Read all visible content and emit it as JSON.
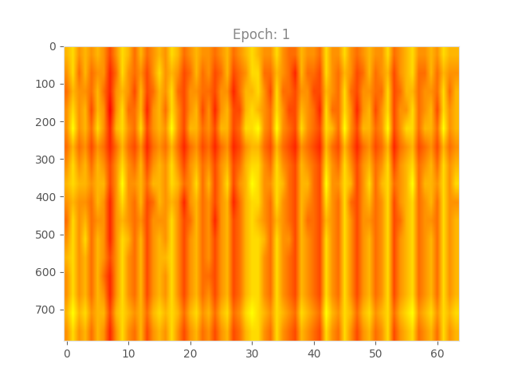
{
  "chart_data": {
    "type": "heatmap",
    "title": "Epoch: 1",
    "xlim": [
      -0.5,
      63.5
    ],
    "ylim": [
      783.5,
      -0.5
    ],
    "xticks": [
      0,
      10,
      20,
      30,
      40,
      50,
      60
    ],
    "yticks": [
      0,
      100,
      200,
      300,
      400,
      500,
      600,
      700
    ],
    "cells": [
      [
        6,
        7,
        5,
        6,
        5,
        6,
        5,
        3,
        5,
        7,
        6,
        4,
        6,
        4,
        5,
        6,
        5,
        7,
        6,
        4,
        5,
        6,
        5,
        5,
        4,
        5,
        6,
        4,
        5,
        6,
        7,
        6,
        5,
        5,
        7,
        5,
        4,
        4,
        6,
        5,
        5,
        4,
        7,
        5,
        5,
        7,
        5,
        4,
        5,
        6,
        5,
        5,
        7,
        4,
        5,
        6,
        7,
        5,
        5,
        6,
        5,
        7,
        6,
        6
      ],
      [
        5,
        7,
        4,
        6,
        4,
        5,
        5,
        2,
        4,
        7,
        5,
        4,
        5,
        3,
        5,
        7,
        5,
        6,
        5,
        3,
        4,
        6,
        4,
        5,
        3,
        4,
        6,
        3,
        4,
        5,
        7,
        7,
        4,
        4,
        6,
        5,
        4,
        2,
        6,
        4,
        4,
        3,
        7,
        5,
        4,
        6,
        5,
        3,
        4,
        6,
        4,
        5,
        6,
        3,
        5,
        6,
        7,
        4,
        4,
        6,
        4,
        6,
        5,
        5
      ],
      [
        4,
        6,
        5,
        5,
        4,
        6,
        4,
        2,
        5,
        6,
        5,
        3,
        6,
        3,
        4,
        6,
        5,
        7,
        4,
        3,
        5,
        5,
        4,
        4,
        3,
        5,
        5,
        2,
        4,
        6,
        6,
        7,
        5,
        3,
        7,
        4,
        4,
        3,
        5,
        5,
        3,
        3,
        6,
        5,
        4,
        7,
        4,
        3,
        5,
        5,
        4,
        4,
        7,
        3,
        4,
        6,
        6,
        4,
        5,
        5,
        4,
        7,
        4,
        6
      ],
      [
        5,
        7,
        5,
        6,
        3,
        6,
        5,
        1,
        5,
        7,
        4,
        4,
        6,
        2,
        5,
        6,
        4,
        7,
        5,
        3,
        5,
        6,
        3,
        5,
        2,
        5,
        6,
        3,
        3,
        6,
        7,
        6,
        5,
        4,
        7,
        5,
        3,
        3,
        6,
        5,
        4,
        2,
        7,
        4,
        4,
        7,
        5,
        2,
        5,
        6,
        3,
        5,
        7,
        3,
        5,
        5,
        7,
        4,
        5,
        6,
        3,
        7,
        5,
        6
      ],
      [
        5,
        8,
        5,
        6,
        4,
        7,
        5,
        2,
        6,
        7,
        5,
        4,
        7,
        3,
        5,
        6,
        5,
        8,
        5,
        3,
        6,
        6,
        4,
        5,
        3,
        6,
        6,
        3,
        4,
        7,
        7,
        8,
        5,
        4,
        8,
        5,
        4,
        3,
        7,
        5,
        4,
        3,
        7,
        6,
        4,
        8,
        5,
        3,
        6,
        6,
        4,
        5,
        8,
        3,
        5,
        7,
        7,
        4,
        6,
        6,
        4,
        8,
        5,
        6
      ],
      [
        4,
        6,
        4,
        5,
        3,
        5,
        4,
        2,
        4,
        6,
        4,
        3,
        5,
        2,
        4,
        5,
        4,
        6,
        4,
        2,
        4,
        5,
        3,
        4,
        2,
        4,
        5,
        2,
        3,
        5,
        6,
        6,
        4,
        3,
        6,
        4,
        3,
        2,
        5,
        4,
        3,
        2,
        6,
        4,
        3,
        6,
        4,
        2,
        4,
        5,
        3,
        4,
        6,
        2,
        4,
        5,
        6,
        3,
        4,
        5,
        3,
        6,
        4,
        5
      ],
      [
        5,
        7,
        5,
        6,
        4,
        6,
        5,
        3,
        5,
        7,
        5,
        4,
        6,
        3,
        5,
        6,
        5,
        7,
        5,
        3,
        5,
        6,
        4,
        5,
        3,
        5,
        6,
        3,
        4,
        6,
        7,
        7,
        5,
        4,
        7,
        5,
        4,
        3,
        6,
        5,
        4,
        3,
        7,
        5,
        4,
        7,
        5,
        3,
        5,
        6,
        4,
        5,
        7,
        3,
        5,
        6,
        7,
        4,
        5,
        6,
        4,
        7,
        5,
        6
      ],
      [
        6,
        7,
        6,
        6,
        5,
        6,
        6,
        3,
        5,
        8,
        5,
        5,
        6,
        4,
        6,
        6,
        5,
        7,
        6,
        4,
        5,
        7,
        4,
        6,
        3,
        5,
        7,
        3,
        5,
        6,
        8,
        7,
        5,
        5,
        7,
        6,
        4,
        3,
        6,
        6,
        4,
        3,
        8,
        5,
        5,
        7,
        6,
        3,
        5,
        7,
        4,
        6,
        7,
        4,
        5,
        6,
        8,
        4,
        6,
        6,
        5,
        7,
        5,
        7
      ],
      [
        5,
        6,
        5,
        5,
        4,
        6,
        5,
        2,
        5,
        7,
        5,
        4,
        6,
        3,
        4,
        6,
        5,
        6,
        5,
        2,
        5,
        6,
        4,
        5,
        3,
        5,
        6,
        2,
        4,
        6,
        7,
        7,
        5,
        4,
        7,
        5,
        4,
        3,
        6,
        5,
        4,
        3,
        7,
        5,
        4,
        7,
        4,
        3,
        5,
        6,
        4,
        5,
        7,
        3,
        5,
        6,
        7,
        4,
        5,
        6,
        4,
        7,
        5,
        5
      ],
      [
        4,
        7,
        5,
        6,
        4,
        5,
        5,
        2,
        5,
        6,
        5,
        4,
        5,
        3,
        5,
        5,
        5,
        7,
        5,
        3,
        4,
        6,
        4,
        5,
        2,
        5,
        6,
        3,
        4,
        6,
        7,
        6,
        5,
        4,
        6,
        5,
        4,
        3,
        6,
        4,
        4,
        3,
        6,
        5,
        4,
        7,
        5,
        3,
        5,
        5,
        4,
        5,
        7,
        3,
        4,
        6,
        7,
        4,
        5,
        5,
        4,
        7,
        5,
        6
      ],
      [
        5,
        7,
        5,
        7,
        4,
        6,
        5,
        2,
        5,
        7,
        6,
        4,
        6,
        3,
        5,
        6,
        5,
        7,
        5,
        3,
        5,
        6,
        4,
        5,
        3,
        5,
        6,
        3,
        4,
        6,
        7,
        7,
        6,
        4,
        7,
        5,
        5,
        3,
        6,
        5,
        4,
        3,
        7,
        5,
        4,
        7,
        5,
        3,
        5,
        6,
        4,
        5,
        7,
        3,
        5,
        6,
        7,
        4,
        5,
        6,
        4,
        7,
        5,
        6
      ],
      [
        6,
        7,
        5,
        6,
        4,
        6,
        5,
        3,
        5,
        7,
        5,
        4,
        6,
        3,
        5,
        6,
        6,
        7,
        5,
        3,
        5,
        6,
        4,
        5,
        3,
        5,
        6,
        3,
        4,
        6,
        7,
        7,
        5,
        4,
        7,
        5,
        4,
        3,
        6,
        5,
        4,
        3,
        7,
        5,
        4,
        7,
        5,
        3,
        5,
        6,
        4,
        5,
        7,
        3,
        5,
        6,
        7,
        4,
        5,
        6,
        4,
        7,
        5,
        6
      ],
      [
        5,
        7,
        5,
        6,
        4,
        6,
        4,
        2,
        5,
        7,
        5,
        4,
        6,
        3,
        5,
        6,
        5,
        7,
        5,
        3,
        5,
        6,
        4,
        4,
        3,
        5,
        6,
        3,
        4,
        6,
        7,
        7,
        5,
        4,
        7,
        5,
        4,
        3,
        6,
        5,
        4,
        3,
        7,
        5,
        4,
        7,
        5,
        3,
        5,
        6,
        4,
        5,
        7,
        3,
        5,
        6,
        7,
        4,
        5,
        6,
        4,
        7,
        5,
        6
      ],
      [
        5,
        7,
        5,
        6,
        4,
        6,
        5,
        2,
        5,
        7,
        5,
        4,
        6,
        3,
        5,
        6,
        5,
        7,
        5,
        3,
        5,
        6,
        4,
        5,
        3,
        5,
        6,
        3,
        4,
        6,
        7,
        7,
        5,
        4,
        7,
        5,
        4,
        3,
        6,
        5,
        4,
        3,
        7,
        5,
        4,
        7,
        5,
        3,
        5,
        6,
        4,
        5,
        7,
        3,
        5,
        6,
        7,
        4,
        5,
        6,
        4,
        7,
        5,
        6
      ],
      [
        6,
        8,
        6,
        7,
        5,
        6,
        6,
        3,
        6,
        7,
        6,
        5,
        6,
        4,
        6,
        7,
        6,
        7,
        6,
        4,
        6,
        7,
        5,
        6,
        4,
        6,
        7,
        4,
        5,
        7,
        8,
        7,
        6,
        5,
        7,
        6,
        5,
        4,
        7,
        6,
        5,
        4,
        8,
        6,
        5,
        7,
        6,
        4,
        6,
        7,
        5,
        6,
        7,
        4,
        6,
        7,
        8,
        5,
        6,
        7,
        5,
        7,
        6,
        7
      ],
      [
        5,
        7,
        5,
        6,
        4,
        6,
        5,
        2,
        5,
        7,
        5,
        4,
        6,
        3,
        5,
        6,
        5,
        7,
        5,
        3,
        5,
        6,
        4,
        5,
        3,
        5,
        6,
        3,
        4,
        6,
        7,
        7,
        5,
        4,
        7,
        5,
        4,
        3,
        6,
        5,
        4,
        3,
        7,
        5,
        4,
        7,
        5,
        3,
        5,
        6,
        4,
        5,
        7,
        3,
        5,
        6,
        7,
        4,
        5,
        6,
        4,
        7,
        5,
        6
      ]
    ]
  }
}
